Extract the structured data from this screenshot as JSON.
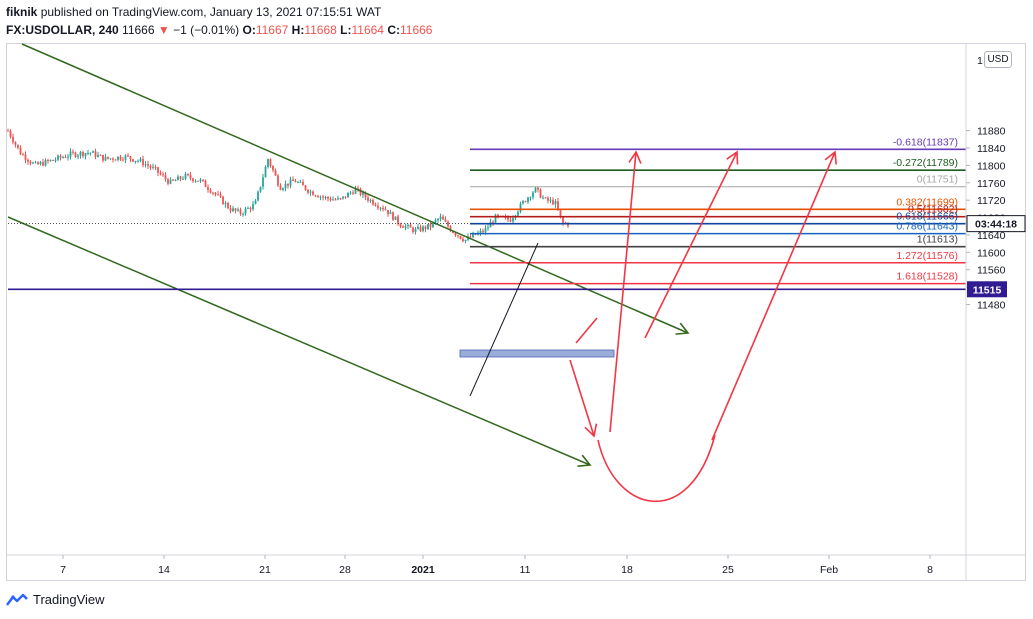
{
  "header": {
    "author": "fiknik",
    "published_text": "published on TradingView.com, January 13, 2021 07:15:51 WAT",
    "symbol": "FX:USDOLLAR, 240",
    "last": "11666",
    "change_arrow": "▼",
    "change": "−1 (−0.01%)",
    "o_label": "O:",
    "o": "11667",
    "h_label": "H:",
    "h": "11668",
    "l_label": "L:",
    "l": "11664",
    "c_label": "C:",
    "c": "11666"
  },
  "currency_button": "USD",
  "footer": {
    "brand": "TradingView"
  },
  "colors": {
    "up": "#26a69a",
    "down": "#ef5350",
    "channel": "#33691e",
    "arrow": "#f23645",
    "axis_text": "#131722",
    "grid": "#e0e3eb"
  },
  "chart_data": {
    "type": "candlestick",
    "price_axis": {
      "ticks": [
        "11880",
        "11840",
        "11800",
        "11760",
        "11720",
        "11680",
        "11640",
        "11600",
        "11560",
        "11520",
        "11480"
      ],
      "top_partial": "1"
    },
    "time_axis": {
      "ticks": [
        "7",
        "14",
        "21",
        "28",
        "2021",
        "11",
        "18",
        "25",
        "Feb",
        "8"
      ]
    },
    "current_price_label": "11666",
    "countdown_label": "03:44:18",
    "support_level_label": "11515",
    "fib_levels": [
      {
        "label": "-0.618(11837)",
        "price": 11837,
        "color": "#673ab7"
      },
      {
        "label": "-0.272(11789)",
        "price": 11789,
        "color": "#1b5e20"
      },
      {
        "label": "0(11751)",
        "price": 11751,
        "color": "#a6a6a6"
      },
      {
        "label": "0.382(11699)",
        "price": 11699,
        "color": "#e65100"
      },
      {
        "label": "0.5(11682)",
        "price": 11682,
        "color": "#b71c1c"
      },
      {
        "label": "0.618(11666)",
        "price": 11666,
        "color": "#0d47a1"
      },
      {
        "label": "0.786(11643)",
        "price": 11643,
        "color": "#1565c0"
      },
      {
        "label": "1(11613)",
        "price": 11613,
        "color": "#424242"
      },
      {
        "label": "1.272(11576)",
        "price": 11576,
        "color": "#f23645"
      },
      {
        "label": "1.618(11528)",
        "price": 11528,
        "color": "#f23645"
      }
    ],
    "horizontal_level": {
      "price": 11515,
      "color": "#311b92"
    },
    "channel_color": "#33691e"
  }
}
